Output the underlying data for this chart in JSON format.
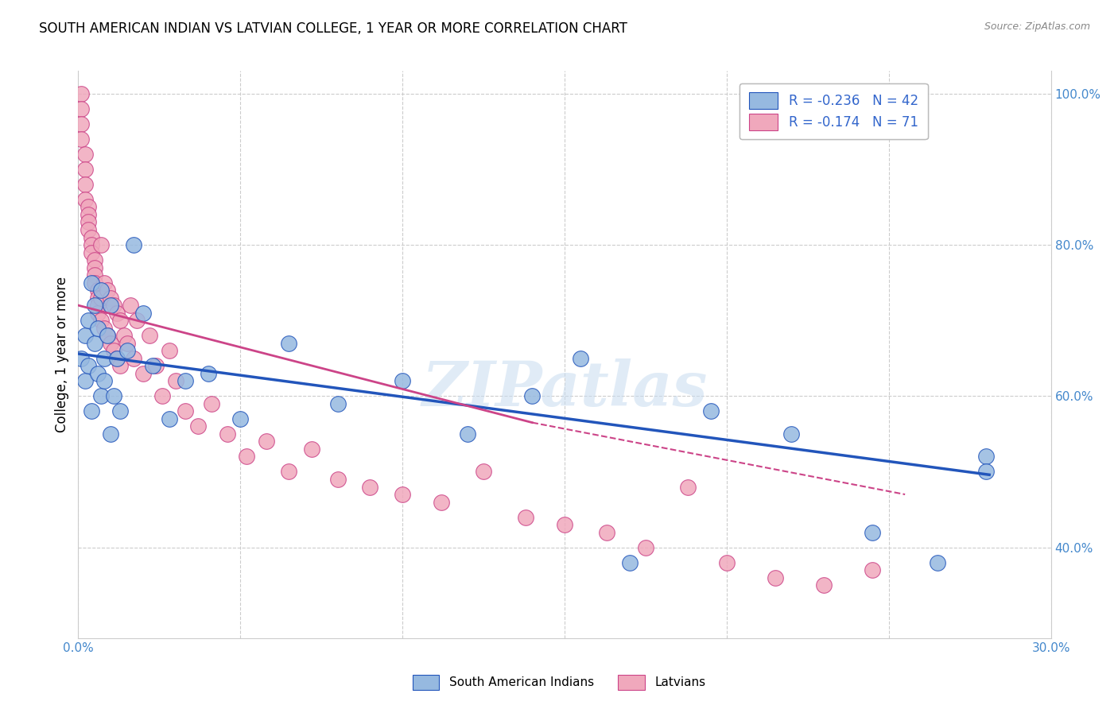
{
  "title": "SOUTH AMERICAN INDIAN VS LATVIAN COLLEGE, 1 YEAR OR MORE CORRELATION CHART",
  "source": "Source: ZipAtlas.com",
  "ylabel": "College, 1 year or more",
  "xlim": [
    0.0,
    0.3
  ],
  "ylim": [
    0.28,
    1.03
  ],
  "x_tick_positions": [
    0.0,
    0.05,
    0.1,
    0.15,
    0.2,
    0.25,
    0.3
  ],
  "x_tick_labels": [
    "0.0%",
    "",
    "",
    "",
    "",
    "",
    "30.0%"
  ],
  "y_ticks_right": [
    0.4,
    0.6,
    0.8,
    1.0
  ],
  "y_tick_labels_right": [
    "40.0%",
    "60.0%",
    "80.0%",
    "100.0%"
  ],
  "legend_r_blue": "-0.236",
  "legend_n_blue": "42",
  "legend_r_pink": "-0.174",
  "legend_n_pink": "71",
  "legend_label_blue": "South American Indians",
  "legend_label_pink": "Latvians",
  "blue_color": "#96B9E0",
  "pink_color": "#F0A8BC",
  "trendline_blue_color": "#2255BB",
  "trendline_pink_color": "#CC4488",
  "watermark": "ZIPatlas",
  "blue_scatter_x": [
    0.001,
    0.002,
    0.002,
    0.003,
    0.003,
    0.004,
    0.004,
    0.005,
    0.005,
    0.006,
    0.006,
    0.007,
    0.007,
    0.008,
    0.008,
    0.009,
    0.01,
    0.01,
    0.011,
    0.012,
    0.013,
    0.015,
    0.017,
    0.02,
    0.023,
    0.028,
    0.033,
    0.04,
    0.05,
    0.065,
    0.08,
    0.1,
    0.12,
    0.14,
    0.155,
    0.17,
    0.195,
    0.22,
    0.245,
    0.265,
    0.28,
    0.28
  ],
  "blue_scatter_y": [
    0.65,
    0.62,
    0.68,
    0.7,
    0.64,
    0.75,
    0.58,
    0.67,
    0.72,
    0.63,
    0.69,
    0.6,
    0.74,
    0.65,
    0.62,
    0.68,
    0.55,
    0.72,
    0.6,
    0.65,
    0.58,
    0.66,
    0.8,
    0.71,
    0.64,
    0.57,
    0.62,
    0.63,
    0.57,
    0.67,
    0.59,
    0.62,
    0.55,
    0.6,
    0.65,
    0.38,
    0.58,
    0.55,
    0.42,
    0.38,
    0.52,
    0.5
  ],
  "pink_scatter_x": [
    0.001,
    0.001,
    0.001,
    0.001,
    0.002,
    0.002,
    0.002,
    0.002,
    0.003,
    0.003,
    0.003,
    0.003,
    0.004,
    0.004,
    0.004,
    0.005,
    0.005,
    0.005,
    0.005,
    0.006,
    0.006,
    0.006,
    0.006,
    0.007,
    0.007,
    0.007,
    0.008,
    0.008,
    0.009,
    0.009,
    0.01,
    0.01,
    0.011,
    0.011,
    0.012,
    0.012,
    0.013,
    0.013,
    0.014,
    0.015,
    0.016,
    0.017,
    0.018,
    0.02,
    0.022,
    0.024,
    0.026,
    0.028,
    0.03,
    0.033,
    0.037,
    0.041,
    0.046,
    0.052,
    0.058,
    0.065,
    0.072,
    0.08,
    0.09,
    0.1,
    0.112,
    0.125,
    0.138,
    0.15,
    0.163,
    0.175,
    0.188,
    0.2,
    0.215,
    0.23,
    0.245
  ],
  "pink_scatter_y": [
    1.0,
    0.98,
    0.96,
    0.94,
    0.92,
    0.9,
    0.88,
    0.86,
    0.85,
    0.84,
    0.83,
    0.82,
    0.81,
    0.8,
    0.79,
    0.78,
    0.77,
    0.76,
    0.75,
    0.74,
    0.73,
    0.72,
    0.71,
    0.8,
    0.73,
    0.7,
    0.75,
    0.69,
    0.74,
    0.68,
    0.73,
    0.67,
    0.72,
    0.66,
    0.71,
    0.65,
    0.7,
    0.64,
    0.68,
    0.67,
    0.72,
    0.65,
    0.7,
    0.63,
    0.68,
    0.64,
    0.6,
    0.66,
    0.62,
    0.58,
    0.56,
    0.59,
    0.55,
    0.52,
    0.54,
    0.5,
    0.53,
    0.49,
    0.48,
    0.47,
    0.46,
    0.5,
    0.44,
    0.43,
    0.42,
    0.4,
    0.48,
    0.38,
    0.36,
    0.35,
    0.37
  ]
}
